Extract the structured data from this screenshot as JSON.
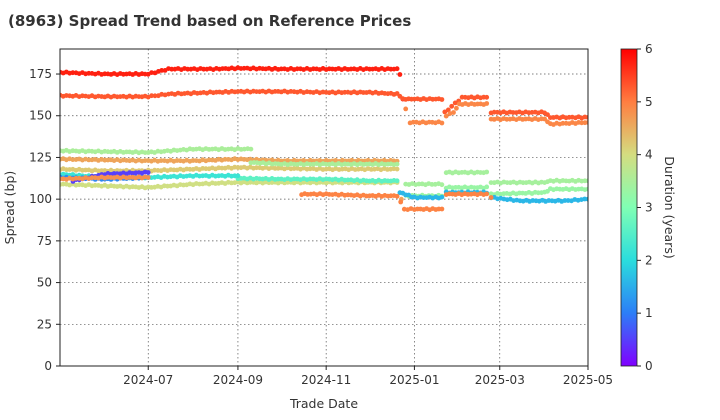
{
  "chart_data": {
    "type": "scatter",
    "title": "(8963)   Spread Trend based on Reference Prices",
    "xlabel": "Trade Date",
    "ylabel": "Spread (bp)",
    "xlim": [
      "2024-05-01",
      "2025-05-01"
    ],
    "ylim": [
      0,
      190
    ],
    "x_ticks": [
      "2024-07",
      "2024-09",
      "2024-11",
      "2025-01",
      "2025-03",
      "2025-05"
    ],
    "y_ticks": [
      0,
      25,
      50,
      75,
      100,
      125,
      150,
      175
    ],
    "grid": true,
    "colorbar": {
      "label": "Duration (years)",
      "range": [
        0,
        6
      ],
      "ticks": [
        0,
        1,
        2,
        3,
        4,
        5,
        6
      ],
      "colormap": "rainbow"
    },
    "series": [
      {
        "duration": 5.75,
        "points": [
          [
            "2024-05-01",
            176
          ],
          [
            "2024-06-01",
            175
          ],
          [
            "2024-07-01",
            175
          ],
          [
            "2024-07-15",
            178
          ],
          [
            "2024-08-15",
            178
          ],
          [
            "2024-09-01",
            178.5
          ],
          [
            "2024-10-01",
            178
          ],
          [
            "2024-11-01",
            178
          ],
          [
            "2024-12-01",
            178
          ],
          [
            "2024-12-20",
            178
          ],
          [
            "2024-12-22",
            175
          ],
          [
            "2024-12-24",
            160
          ]
        ]
      },
      {
        "duration": 5.3,
        "points": [
          [
            "2024-05-01",
            162
          ],
          [
            "2024-06-01",
            161.5
          ],
          [
            "2024-07-01",
            161.5
          ],
          [
            "2024-07-15",
            163
          ],
          [
            "2024-08-15",
            164
          ],
          [
            "2024-09-01",
            164.5
          ],
          [
            "2024-10-01",
            164.5
          ],
          [
            "2024-11-01",
            164
          ],
          [
            "2024-12-01",
            164
          ],
          [
            "2024-12-20",
            163
          ],
          [
            "2024-12-22",
            162
          ],
          [
            "2024-12-24",
            160
          ],
          [
            "2025-01-01",
            160
          ],
          [
            "2025-01-20",
            160
          ],
          [
            "2025-01-22",
            152
          ],
          [
            "2025-02-03",
            161
          ],
          [
            "2025-02-20",
            161
          ],
          [
            "2025-02-23",
            152
          ],
          [
            "2025-04-01",
            152
          ],
          [
            "2025-04-05",
            149
          ],
          [
            "2025-05-01",
            149
          ]
        ]
      },
      {
        "duration": 4.9,
        "points": [
          [
            "2024-12-26",
            154
          ],
          [
            "2024-12-29",
            146
          ],
          [
            "2025-01-20",
            146
          ],
          [
            "2025-01-23",
            150
          ],
          [
            "2025-01-28",
            152
          ],
          [
            "2025-02-01",
            157
          ],
          [
            "2025-02-20",
            157
          ],
          [
            "2025-02-23",
            148
          ],
          [
            "2025-04-01",
            148
          ],
          [
            "2025-04-05",
            145
          ],
          [
            "2025-05-01",
            146
          ]
        ]
      },
      {
        "duration": 4.6,
        "points": [
          [
            "2024-05-01",
            124
          ],
          [
            "2024-06-01",
            123.5
          ],
          [
            "2024-07-01",
            123
          ],
          [
            "2024-08-01",
            123
          ],
          [
            "2024-09-01",
            124
          ],
          [
            "2024-10-01",
            123
          ],
          [
            "2024-11-01",
            123
          ],
          [
            "2024-12-20",
            123
          ],
          [
            "2024-12-23",
            100
          ]
        ]
      },
      {
        "duration": 4.2,
        "points": [
          [
            "2024-05-01",
            118
          ],
          [
            "2024-06-01",
            117
          ],
          [
            "2024-07-01",
            117
          ],
          [
            "2024-08-01",
            118
          ],
          [
            "2024-09-01",
            119
          ],
          [
            "2024-10-01",
            118.5
          ],
          [
            "2024-11-01",
            118
          ],
          [
            "2024-12-20",
            118
          ]
        ]
      },
      {
        "duration": 3.95,
        "points": [
          [
            "2024-05-01",
            109
          ],
          [
            "2024-06-01",
            108
          ],
          [
            "2024-07-01",
            107
          ],
          [
            "2024-08-01",
            109
          ],
          [
            "2024-09-01",
            110
          ],
          [
            "2024-10-01",
            110
          ],
          [
            "2024-11-01",
            110
          ],
          [
            "2024-12-20",
            110
          ]
        ]
      },
      {
        "duration": 3.5,
        "points": [
          [
            "2024-05-01",
            129
          ],
          [
            "2024-06-01",
            128.5
          ],
          [
            "2024-07-01",
            128
          ],
          [
            "2024-08-01",
            130
          ],
          [
            "2024-09-01",
            130
          ],
          [
            "2024-09-10",
            130
          ]
        ]
      },
      {
        "duration": 3.5,
        "points": [
          [
            "2024-09-10",
            122
          ],
          [
            "2024-10-01",
            121
          ],
          [
            "2024-11-01",
            121
          ],
          [
            "2024-12-01",
            121
          ],
          [
            "2024-12-20",
            121
          ]
        ]
      },
      {
        "duration": 3.45,
        "points": [
          [
            "2024-12-26",
            109
          ],
          [
            "2025-01-20",
            109
          ],
          [
            "2025-01-23",
            116
          ],
          [
            "2025-02-20",
            116
          ],
          [
            "2025-02-23",
            110
          ],
          [
            "2025-03-15",
            110
          ],
          [
            "2025-04-01",
            110
          ],
          [
            "2025-04-05",
            111
          ],
          [
            "2025-05-01",
            111
          ]
        ]
      },
      {
        "duration": 3.3,
        "points": [
          [
            "2024-12-26",
            102
          ],
          [
            "2025-01-20",
            102
          ],
          [
            "2025-01-23",
            107
          ],
          [
            "2025-02-20",
            107
          ],
          [
            "2025-02-23",
            103
          ],
          [
            "2025-04-01",
            104
          ],
          [
            "2025-04-05",
            106
          ],
          [
            "2025-05-01",
            106
          ]
        ]
      },
      {
        "duration": 2.6,
        "points": [
          [
            "2024-09-01",
            112.5
          ],
          [
            "2024-10-01",
            112
          ],
          [
            "2024-11-01",
            112
          ],
          [
            "2024-12-01",
            111
          ],
          [
            "2024-12-20",
            111
          ]
        ]
      },
      {
        "duration": 2.2,
        "points": [
          [
            "2024-05-01",
            115
          ],
          [
            "2024-06-01",
            113
          ],
          [
            "2024-07-01",
            113
          ],
          [
            "2024-08-01",
            114
          ],
          [
            "2024-09-01",
            114
          ]
        ]
      },
      {
        "duration": 1.6,
        "points": [
          [
            "2024-12-22",
            104
          ],
          [
            "2025-01-01",
            101
          ],
          [
            "2025-01-20",
            101
          ],
          [
            "2025-01-23",
            104
          ],
          [
            "2025-02-20",
            104
          ],
          [
            "2025-02-23",
            101
          ],
          [
            "2025-03-15",
            99
          ],
          [
            "2025-04-15",
            99
          ],
          [
            "2025-05-01",
            100
          ]
        ]
      },
      {
        "duration": 1.1,
        "points": [
          [
            "2024-05-01",
            113
          ],
          [
            "2024-06-01",
            112
          ],
          [
            "2024-07-01",
            113
          ]
        ]
      },
      {
        "duration": 0.5,
        "points": [
          [
            "2024-05-10",
            111
          ],
          [
            "2024-06-01",
            115
          ],
          [
            "2024-07-01",
            116
          ]
        ]
      },
      {
        "duration": 4.8,
        "points": [
          [
            "2024-05-01",
            112
          ],
          [
            "2024-06-01",
            113
          ],
          [
            "2024-07-01",
            113
          ]
        ]
      },
      {
        "duration": 4.95,
        "points": [
          [
            "2024-10-15",
            103
          ],
          [
            "2024-11-01",
            103
          ],
          [
            "2024-12-01",
            102
          ],
          [
            "2024-12-20",
            102
          ],
          [
            "2024-12-25",
            94
          ],
          [
            "2025-01-01",
            94
          ],
          [
            "2025-01-20",
            94
          ],
          [
            "2025-01-23",
            103
          ],
          [
            "2025-02-20",
            103
          ],
          [
            "2025-02-23",
            101
          ]
        ]
      }
    ]
  }
}
